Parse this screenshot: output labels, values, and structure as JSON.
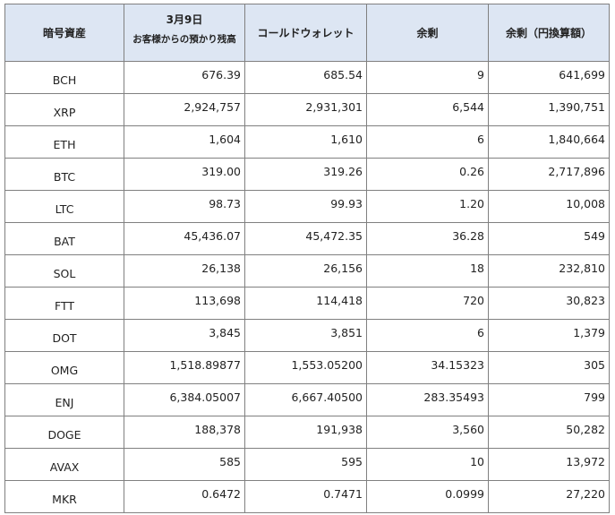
{
  "table": {
    "headers": {
      "asset": "暗号資産",
      "date_line1": "3月9日",
      "date_line2": "お客様からの預かり残高",
      "cold_wallet": "コールドウォレット",
      "surplus": "余剰",
      "surplus_jpy": "余剰（円換算額）"
    },
    "rows": [
      {
        "asset": "BCH",
        "deposit": "676.39",
        "cold": "685.54",
        "surplus": "9",
        "surplus_jpy": "641,699"
      },
      {
        "asset": "XRP",
        "deposit": "2,924,757",
        "cold": "2,931,301",
        "surplus": "6,544",
        "surplus_jpy": "1,390,751"
      },
      {
        "asset": "ETH",
        "deposit": "1,604",
        "cold": "1,610",
        "surplus": "6",
        "surplus_jpy": "1,840,664"
      },
      {
        "asset": "BTC",
        "deposit": "319.00",
        "cold": "319.26",
        "surplus": "0.26",
        "surplus_jpy": "2,717,896"
      },
      {
        "asset": "LTC",
        "deposit": "98.73",
        "cold": "99.93",
        "surplus": "1.20",
        "surplus_jpy": "10,008"
      },
      {
        "asset": "BAT",
        "deposit": "45,436.07",
        "cold": "45,472.35",
        "surplus": "36.28",
        "surplus_jpy": "549"
      },
      {
        "asset": "SOL",
        "deposit": "26,138",
        "cold": "26,156",
        "surplus": "18",
        "surplus_jpy": "232,810"
      },
      {
        "asset": "FTT",
        "deposit": "113,698",
        "cold": "114,418",
        "surplus": "720",
        "surplus_jpy": "30,823"
      },
      {
        "asset": "DOT",
        "deposit": "3,845",
        "cold": "3,851",
        "surplus": "6",
        "surplus_jpy": "1,379"
      },
      {
        "asset": "OMG",
        "deposit": "1,518.89877",
        "cold": "1,553.05200",
        "surplus": "34.15323",
        "surplus_jpy": "305"
      },
      {
        "asset": "ENJ",
        "deposit": "6,384.05007",
        "cold": "6,667.40500",
        "surplus": "283.35493",
        "surplus_jpy": "799"
      },
      {
        "asset": "DOGE",
        "deposit": "188,378",
        "cold": "191,938",
        "surplus": "3,560",
        "surplus_jpy": "50,282"
      },
      {
        "asset": "AVAX",
        "deposit": "585",
        "cold": "595",
        "surplus": "10",
        "surplus_jpy": "13,972"
      },
      {
        "asset": "MKR",
        "deposit": "0.6472",
        "cold": "0.7471",
        "surplus": "0.0999",
        "surplus_jpy": "27,220"
      }
    ]
  }
}
